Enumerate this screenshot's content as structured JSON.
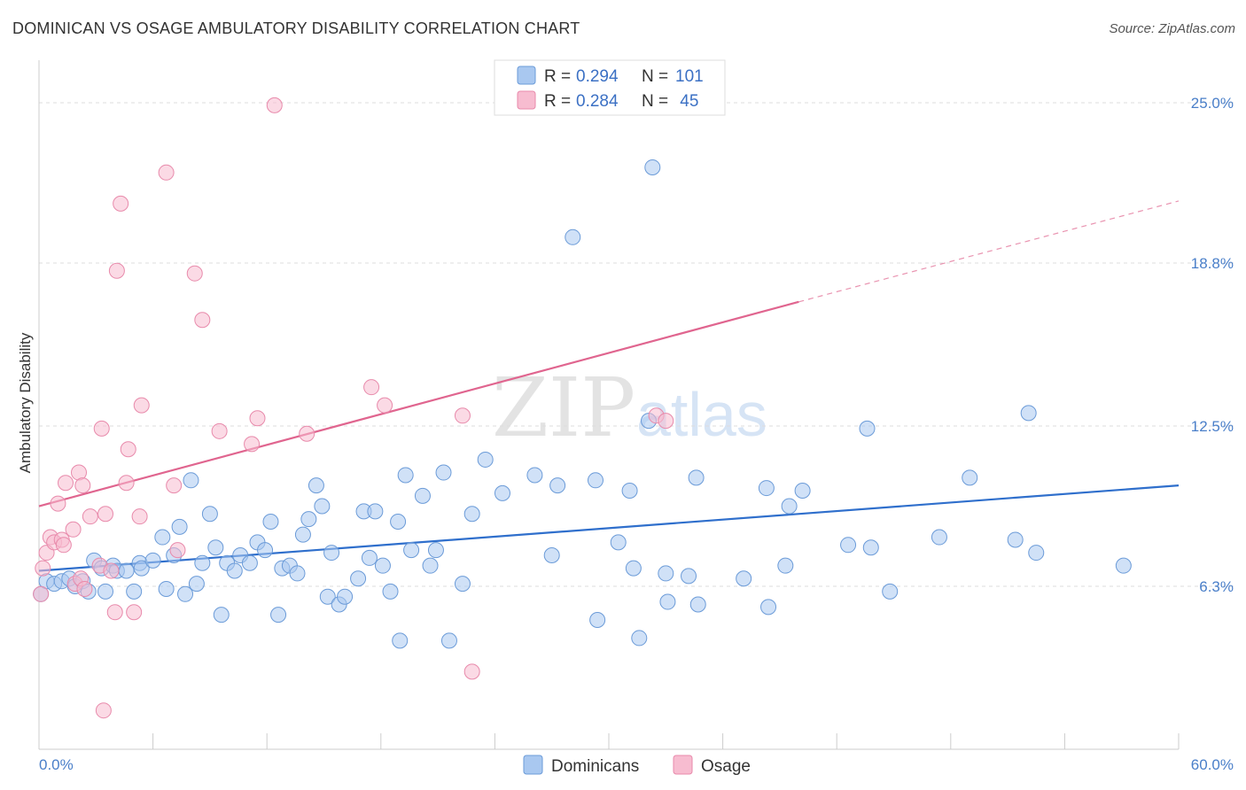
{
  "title": "DOMINICAN VS OSAGE AMBULATORY DISABILITY CORRELATION CHART",
  "source": "Source: ZipAtlas.com",
  "watermark": {
    "zip": "ZIP",
    "atlas": "atlas"
  },
  "colors": {
    "dominicans_fill": "#a9c8f0",
    "dominicans_stroke": "#6b9bd8",
    "dominicans_line": "#2f6fcc",
    "osage_fill": "#f7bcd0",
    "osage_stroke": "#e88aab",
    "osage_line": "#e0658f",
    "tick_label": "#4a7fc9",
    "grid": "#dddddd"
  },
  "legend": {
    "rows": [
      {
        "r_label": "R =",
        "r_value": "0.294",
        "n_label": "N =",
        "n_value": "101"
      },
      {
        "r_label": "R =",
        "r_value": "0.284",
        "n_label": "N =",
        "n_value": " 45"
      }
    ]
  },
  "chart_data": {
    "type": "scatter",
    "xlabel": "",
    "ylabel": "Ambulatory Disability",
    "xlim": [
      0,
      60
    ],
    "ylim": [
      0,
      26.3
    ],
    "x_tick_labels": [
      "0.0%",
      "60.0%"
    ],
    "y_ticks": [
      6.3,
      12.5,
      18.8,
      25.0
    ],
    "y_tick_labels": [
      "6.3%",
      "12.5%",
      "18.8%",
      "25.0%"
    ],
    "grid": "horizontal dashed",
    "legend_position": "top-center",
    "series": [
      {
        "name": "Dominicans",
        "trend": {
          "x": [
            0,
            60
          ],
          "y": [
            6.9,
            10.2
          ]
        },
        "points": [
          [
            0.1,
            6.0
          ],
          [
            0.4,
            6.5
          ],
          [
            0.8,
            6.4
          ],
          [
            1.2,
            6.5
          ],
          [
            1.6,
            6.6
          ],
          [
            1.9,
            6.3
          ],
          [
            2.3,
            6.5
          ],
          [
            2.6,
            6.1
          ],
          [
            2.9,
            7.3
          ],
          [
            3.3,
            7.0
          ],
          [
            3.5,
            6.1
          ],
          [
            3.9,
            7.1
          ],
          [
            4.1,
            6.9
          ],
          [
            4.6,
            6.9
          ],
          [
            5.0,
            6.1
          ],
          [
            5.3,
            7.2
          ],
          [
            5.4,
            7.0
          ],
          [
            6.0,
            7.3
          ],
          [
            6.5,
            8.2
          ],
          [
            6.7,
            6.2
          ],
          [
            7.1,
            7.5
          ],
          [
            7.4,
            8.6
          ],
          [
            7.7,
            6.0
          ],
          [
            8.0,
            10.4
          ],
          [
            8.3,
            6.4
          ],
          [
            8.6,
            7.2
          ],
          [
            9.0,
            9.1
          ],
          [
            9.3,
            7.8
          ],
          [
            9.6,
            5.2
          ],
          [
            9.9,
            7.2
          ],
          [
            10.3,
            6.9
          ],
          [
            10.6,
            7.5
          ],
          [
            11.1,
            7.2
          ],
          [
            11.5,
            8.0
          ],
          [
            11.9,
            7.7
          ],
          [
            12.2,
            8.8
          ],
          [
            12.6,
            5.2
          ],
          [
            12.8,
            7.0
          ],
          [
            13.2,
            7.1
          ],
          [
            13.6,
            6.8
          ],
          [
            13.9,
            8.3
          ],
          [
            14.2,
            8.9
          ],
          [
            14.6,
            10.2
          ],
          [
            14.9,
            9.4
          ],
          [
            15.2,
            5.9
          ],
          [
            15.4,
            7.6
          ],
          [
            15.8,
            5.6
          ],
          [
            16.1,
            5.9
          ],
          [
            16.8,
            6.6
          ],
          [
            17.1,
            9.2
          ],
          [
            17.4,
            7.4
          ],
          [
            17.7,
            9.2
          ],
          [
            18.1,
            7.1
          ],
          [
            18.5,
            6.1
          ],
          [
            18.9,
            8.8
          ],
          [
            19.0,
            4.2
          ],
          [
            19.3,
            10.6
          ],
          [
            19.6,
            7.7
          ],
          [
            20.2,
            9.8
          ],
          [
            20.6,
            7.1
          ],
          [
            20.9,
            7.7
          ],
          [
            21.3,
            10.7
          ],
          [
            21.6,
            4.2
          ],
          [
            22.3,
            6.4
          ],
          [
            22.8,
            9.1
          ],
          [
            23.5,
            11.2
          ],
          [
            24.4,
            9.9
          ],
          [
            26.1,
            10.6
          ],
          [
            27.0,
            7.5
          ],
          [
            27.3,
            10.2
          ],
          [
            28.1,
            19.8
          ],
          [
            29.3,
            10.4
          ],
          [
            29.4,
            5.0
          ],
          [
            30.5,
            8.0
          ],
          [
            31.1,
            10.0
          ],
          [
            31.3,
            7.0
          ],
          [
            31.6,
            4.3
          ],
          [
            32.1,
            12.7
          ],
          [
            32.3,
            22.5
          ],
          [
            33.0,
            6.8
          ],
          [
            33.1,
            5.7
          ],
          [
            34.2,
            6.7
          ],
          [
            34.6,
            10.5
          ],
          [
            34.7,
            5.6
          ],
          [
            37.1,
            6.6
          ],
          [
            38.3,
            10.1
          ],
          [
            38.4,
            5.5
          ],
          [
            39.3,
            7.1
          ],
          [
            39.5,
            9.4
          ],
          [
            40.2,
            10.0
          ],
          [
            42.6,
            7.9
          ],
          [
            43.6,
            12.4
          ],
          [
            43.8,
            7.8
          ],
          [
            44.8,
            6.1
          ],
          [
            47.4,
            8.2
          ],
          [
            49.0,
            10.5
          ],
          [
            51.4,
            8.1
          ],
          [
            52.1,
            13.0
          ],
          [
            52.5,
            7.6
          ],
          [
            57.1,
            7.1
          ]
        ]
      },
      {
        "name": "Osage",
        "trend": {
          "x": [
            0,
            40
          ],
          "y": [
            9.4,
            17.3
          ],
          "dashed_to": {
            "x": 60,
            "y": 21.2
          }
        },
        "points": [
          [
            0.1,
            6.0
          ],
          [
            0.2,
            7.0
          ],
          [
            0.4,
            7.6
          ],
          [
            0.6,
            8.2
          ],
          [
            0.8,
            8.0
          ],
          [
            1.0,
            9.5
          ],
          [
            1.2,
            8.1
          ],
          [
            1.3,
            7.9
          ],
          [
            1.4,
            10.3
          ],
          [
            1.8,
            8.5
          ],
          [
            1.9,
            6.4
          ],
          [
            2.1,
            10.7
          ],
          [
            2.2,
            6.6
          ],
          [
            2.3,
            10.2
          ],
          [
            2.4,
            6.2
          ],
          [
            2.7,
            9.0
          ],
          [
            3.2,
            7.1
          ],
          [
            3.3,
            12.4
          ],
          [
            3.4,
            1.5
          ],
          [
            3.5,
            9.1
          ],
          [
            3.8,
            6.9
          ],
          [
            4.0,
            5.3
          ],
          [
            4.1,
            18.5
          ],
          [
            4.3,
            21.1
          ],
          [
            4.6,
            10.3
          ],
          [
            4.7,
            11.6
          ],
          [
            5.0,
            5.3
          ],
          [
            5.3,
            9.0
          ],
          [
            5.4,
            13.3
          ],
          [
            6.7,
            22.3
          ],
          [
            7.1,
            10.2
          ],
          [
            7.3,
            7.7
          ],
          [
            8.2,
            18.4
          ],
          [
            8.6,
            16.6
          ],
          [
            9.5,
            12.3
          ],
          [
            11.2,
            11.8
          ],
          [
            11.5,
            12.8
          ],
          [
            12.4,
            24.9
          ],
          [
            14.1,
            12.2
          ],
          [
            17.5,
            14.0
          ],
          [
            18.2,
            13.3
          ],
          [
            22.3,
            12.9
          ],
          [
            22.8,
            3.0
          ],
          [
            32.5,
            12.9
          ],
          [
            33.0,
            12.7
          ]
        ]
      }
    ]
  }
}
